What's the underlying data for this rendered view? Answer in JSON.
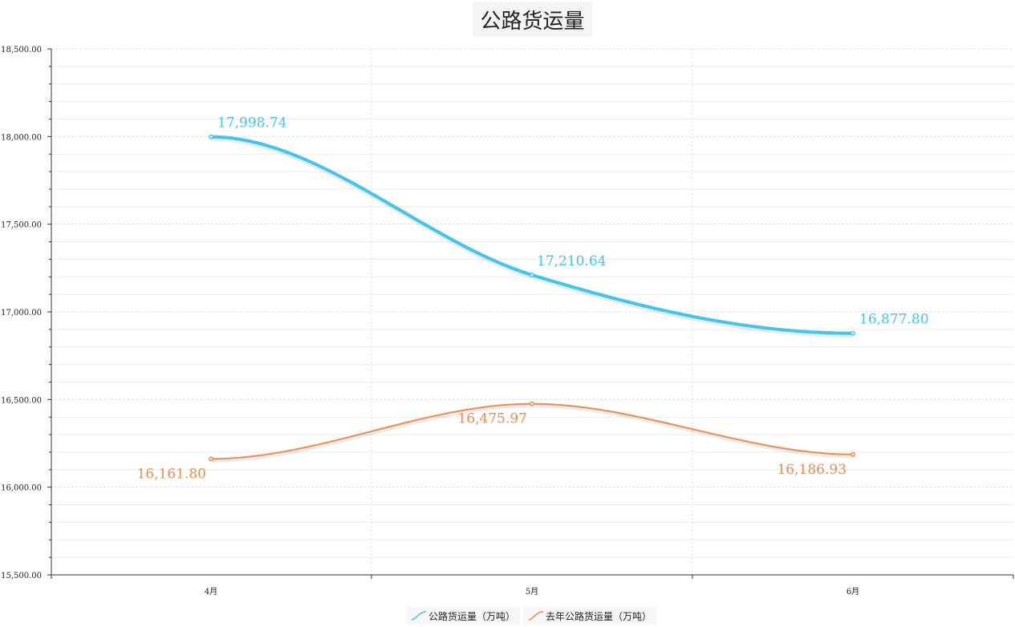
{
  "chart_data": {
    "type": "line",
    "title": "公路货运量",
    "categories": [
      "4月",
      "5月",
      "6月"
    ],
    "ylim": [
      15500,
      18500
    ],
    "yticks": [
      "15,500.00",
      "16,000.00",
      "16,500.00",
      "17,000.00",
      "17,500.00",
      "18,000.00",
      "18,500.00"
    ],
    "series": [
      {
        "name": "公路货运量（万吨）",
        "values": [
          17998.74,
          17210.64,
          16877.8
        ],
        "labels": [
          "17,998.74",
          "17,210.64",
          "16,877.80"
        ],
        "color": "#3ec6f0"
      },
      {
        "name": "去年公路货运量（万吨）",
        "values": [
          16161.8,
          16475.97,
          16186.93
        ],
        "labels": [
          "16,161.80",
          "16,475.97",
          "16,186.93"
        ],
        "color": "#f08a4b"
      }
    ],
    "grid": true,
    "legend": "bottom-center"
  }
}
